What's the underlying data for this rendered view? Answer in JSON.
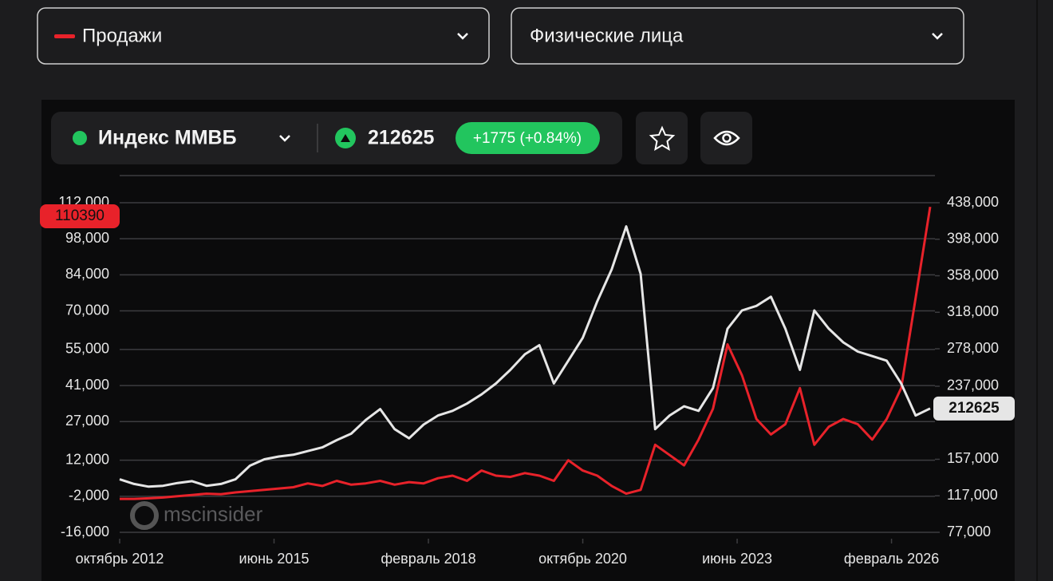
{
  "controls": {
    "segment": "Физические лица"
  },
  "ticker": {
    "price": 212625,
    "change": "+1775 (+0.84%)"
  },
  "watermark": "mscinsider",
  "chart_data": {
    "type": "line",
    "x": [
      "2012-10",
      "2013-01",
      "2013-04",
      "2013-07",
      "2013-10",
      "2014-01",
      "2014-04",
      "2014-07",
      "2014-10",
      "2015-01",
      "2015-04",
      "2015-07",
      "2015-10",
      "2016-01",
      "2016-04",
      "2016-07",
      "2016-10",
      "2017-01",
      "2017-04",
      "2017-07",
      "2017-10",
      "2018-01",
      "2018-04",
      "2018-07",
      "2018-10",
      "2019-01",
      "2019-04",
      "2019-07",
      "2019-10",
      "2020-01",
      "2020-04",
      "2020-07",
      "2020-10",
      "2021-01",
      "2021-04",
      "2021-07",
      "2021-10",
      "2022-01",
      "2022-04",
      "2022-07",
      "2022-10",
      "2023-01",
      "2023-04",
      "2023-07",
      "2023-10",
      "2024-01",
      "2024-04",
      "2024-07",
      "2024-10",
      "2025-01",
      "2025-04",
      "2025-07",
      "2025-10",
      "2026-01",
      "2026-04",
      "2026-07",
      "2026-10"
    ],
    "xlim": [
      "2012-10",
      "2026-11"
    ],
    "xticks": [
      {
        "value": "2012-10",
        "label": "октябрь 2012"
      },
      {
        "value": "2015-06",
        "label": "июнь 2015"
      },
      {
        "value": "2018-02",
        "label": "февраль 2018"
      },
      {
        "value": "2020-10",
        "label": "октябрь 2020"
      },
      {
        "value": "2023-06",
        "label": "июнь 2023"
      },
      {
        "value": "2026-02",
        "label": "февраль 2026"
      }
    ],
    "ylim": [
      -16000,
      112000
    ],
    "yticks": [
      {
        "value": -16000,
        "label": "-16,000"
      },
      {
        "value": -2000,
        "label": "-2,000"
      },
      {
        "value": 12000,
        "label": "12,000"
      },
      {
        "value": 27000,
        "label": "27,000"
      },
      {
        "value": 41000,
        "label": "41,000"
      },
      {
        "value": 55000,
        "label": "55,000"
      },
      {
        "value": 70000,
        "label": "70,000"
      },
      {
        "value": 84000,
        "label": "84,000"
      },
      {
        "value": 98000,
        "label": "98,000"
      },
      {
        "value": 112000,
        "label": "112,000"
      }
    ],
    "y2lim": [
      77000,
      438000
    ],
    "y2ticks": [
      {
        "value": 77000,
        "label": "77,000"
      },
      {
        "value": 117000,
        "label": "117,000"
      },
      {
        "value": 157000,
        "label": "157,000"
      },
      {
        "value": 237000,
        "label": "237,000"
      },
      {
        "value": 278000,
        "label": "278,000"
      },
      {
        "value": 318000,
        "label": "318,000"
      },
      {
        "value": 358000,
        "label": "358,000"
      },
      {
        "value": 398000,
        "label": "398,000"
      },
      {
        "value": 438000,
        "label": "438,000"
      }
    ],
    "grid": true,
    "series": [
      {
        "name": "Продажи",
        "color": "#e8222a",
        "axis": "y",
        "values": [
          -3000,
          -3000,
          -2800,
          -2500,
          -2000,
          -1500,
          -1000,
          -1200,
          -500,
          0,
          500,
          1000,
          1500,
          3000,
          2000,
          4000,
          2500,
          3000,
          4000,
          2500,
          3500,
          3000,
          5000,
          6000,
          4000,
          8000,
          6000,
          5500,
          7000,
          6000,
          4000,
          12000,
          8000,
          6000,
          2000,
          -1000,
          500,
          18000,
          14000,
          10000,
          20000,
          32000,
          57000,
          45000,
          28000,
          22000,
          26000,
          40000,
          18000,
          25000,
          28000,
          26000,
          20000,
          28000,
          40000,
          75000,
          110390
        ]
      },
      {
        "name": "Индекс ММВБ",
        "color": "#e6e6e6",
        "axis": "y2",
        "values": [
          135000,
          130000,
          127000,
          128000,
          131000,
          133000,
          128000,
          130000,
          135000,
          150000,
          157000,
          160000,
          162000,
          166000,
          170000,
          178000,
          185000,
          200000,
          212000,
          190000,
          180000,
          195000,
          205000,
          210000,
          218000,
          228000,
          240000,
          255000,
          272000,
          282000,
          240000,
          265000,
          290000,
          330000,
          365000,
          412000,
          360000,
          190000,
          205000,
          215000,
          210000,
          235000,
          300000,
          320000,
          325000,
          335000,
          300000,
          255000,
          320000,
          300000,
          285000,
          275000,
          270000,
          265000,
          240000,
          205000,
          212625
        ]
      }
    ]
  }
}
